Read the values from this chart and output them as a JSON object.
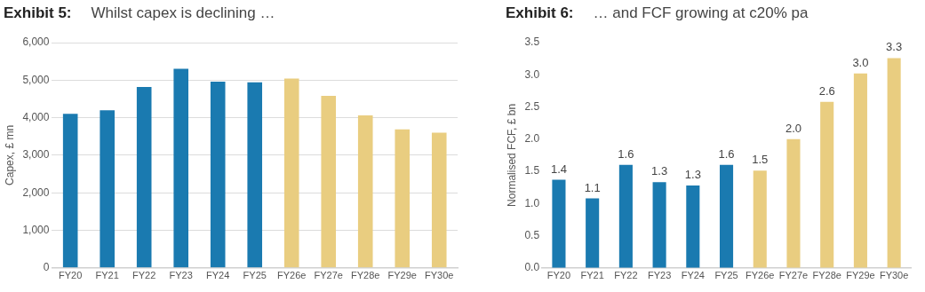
{
  "chart_data": [
    {
      "type": "bar",
      "title": "Exhibit 5:",
      "subtitle": "Whilst capex is declining …",
      "ylabel": "Capex, £ mn",
      "categories": [
        "FY20",
        "FY21",
        "FY22",
        "FY23",
        "FY24",
        "FY25",
        "FY26e",
        "FY27e",
        "FY28e",
        "FY29e",
        "FY30e"
      ],
      "values": [
        4100,
        4200,
        4820,
        5300,
        4960,
        4940,
        5040,
        4580,
        4060,
        3690,
        3600
      ],
      "colors": [
        "#1a7ab0",
        "#1a7ab0",
        "#1a7ab0",
        "#1a7ab0",
        "#1a7ab0",
        "#1a7ab0",
        "#e9cd80",
        "#e9cd80",
        "#e9cd80",
        "#e9cd80",
        "#e9cd80"
      ],
      "ylim": [
        0,
        6000
      ],
      "yticks": [
        {
          "value": 0,
          "label": "0"
        },
        {
          "value": 1000,
          "label": "1,000"
        },
        {
          "value": 2000,
          "label": "2,000"
        },
        {
          "value": 3000,
          "label": "3,000"
        },
        {
          "value": 4000,
          "label": "4,000"
        },
        {
          "value": 5000,
          "label": "5,000"
        },
        {
          "value": 6000,
          "label": "6,000"
        }
      ],
      "grid": "y"
    },
    {
      "type": "bar",
      "title": "Exhibit 6:",
      "subtitle": "… and FCF growing at c20% pa",
      "ylabel": "Normalised FCF, £ bn",
      "categories": [
        "FY20",
        "FY21",
        "FY22",
        "FY23",
        "FY24",
        "FY25",
        "FY26e",
        "FY27e",
        "FY28e",
        "FY29e",
        "FY30e"
      ],
      "values": [
        1.37,
        1.08,
        1.6,
        1.33,
        1.28,
        1.6,
        1.51,
        2.0,
        2.58,
        3.02,
        3.26
      ],
      "value_labels": [
        "1.4",
        "1.1",
        "1.6",
        "1.3",
        "1.3",
        "1.6",
        "1.5",
        "2.0",
        "2.6",
        "3.0",
        "3.3"
      ],
      "colors": [
        "#1a7ab0",
        "#1a7ab0",
        "#1a7ab0",
        "#1a7ab0",
        "#1a7ab0",
        "#1a7ab0",
        "#e9cd80",
        "#e9cd80",
        "#e9cd80",
        "#e9cd80",
        "#e9cd80"
      ],
      "ylim": [
        0,
        3.5
      ],
      "yticks": [
        {
          "value": 0,
          "label": "0.0"
        },
        {
          "value": 0.5,
          "label": "0.5"
        },
        {
          "value": 1,
          "label": "1.0"
        },
        {
          "value": 1.5,
          "label": "1.5"
        },
        {
          "value": 2,
          "label": "2.0"
        },
        {
          "value": 2.5,
          "label": "2.5"
        },
        {
          "value": 3,
          "label": "3.0"
        },
        {
          "value": 3.5,
          "label": "3.5"
        }
      ],
      "grid": false
    }
  ]
}
